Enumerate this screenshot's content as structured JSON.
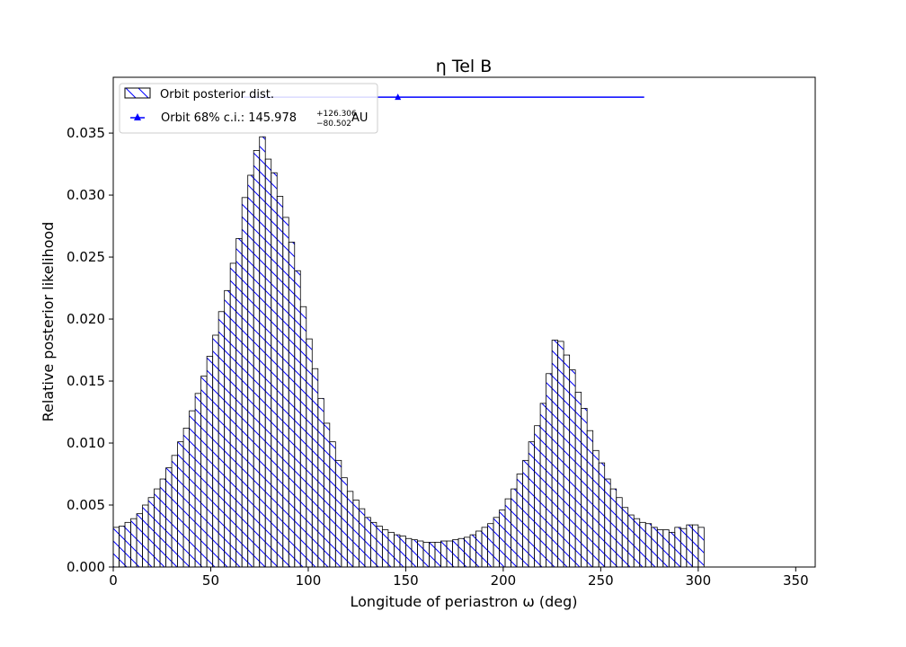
{
  "chart_data": {
    "type": "bar",
    "title": "η Tel B",
    "xlabel": "Longitude of periastron ω (deg)",
    "ylabel": "Relative posterior likelihood",
    "xlim": [
      0,
      360
    ],
    "ylim": [
      0,
      0.0395
    ],
    "xticks": [
      0,
      50,
      100,
      150,
      200,
      250,
      300,
      350
    ],
    "yticks": [
      0.0,
      0.005,
      0.01,
      0.015,
      0.02,
      0.025,
      0.03,
      0.035
    ],
    "ytick_labels": [
      "0.000",
      "0.005",
      "0.010",
      "0.015",
      "0.020",
      "0.025",
      "0.030",
      "0.035"
    ],
    "bin_width": 3,
    "bin_start": 0,
    "values": [
      0.0032,
      0.0033,
      0.0036,
      0.0039,
      0.0043,
      0.005,
      0.0056,
      0.0063,
      0.0071,
      0.008,
      0.009,
      0.0101,
      0.0112,
      0.0126,
      0.014,
      0.0154,
      0.017,
      0.0187,
      0.0206,
      0.0223,
      0.0245,
      0.0265,
      0.0298,
      0.0316,
      0.0336,
      0.0347,
      0.0329,
      0.0318,
      0.0299,
      0.0282,
      0.0262,
      0.0239,
      0.021,
      0.0184,
      0.016,
      0.0136,
      0.0116,
      0.0101,
      0.0086,
      0.0072,
      0.0061,
      0.0054,
      0.0047,
      0.004,
      0.0036,
      0.0033,
      0.003,
      0.0028,
      0.0026,
      0.0025,
      0.0023,
      0.0022,
      0.0021,
      0.002,
      0.002,
      0.002,
      0.0021,
      0.0021,
      0.0022,
      0.0023,
      0.0024,
      0.0026,
      0.0029,
      0.0032,
      0.0035,
      0.004,
      0.0046,
      0.0055,
      0.0063,
      0.0075,
      0.0086,
      0.0101,
      0.0114,
      0.0132,
      0.0156,
      0.0183,
      0.0182,
      0.0171,
      0.0159,
      0.0141,
      0.0128,
      0.011,
      0.0094,
      0.0084,
      0.0071,
      0.0063,
      0.0056,
      0.0048,
      0.0042,
      0.0039,
      0.0036,
      0.0035,
      0.0032,
      0.003,
      0.003,
      0.0028,
      0.0032,
      0.0031,
      0.0034,
      0.0034,
      0.0032
    ],
    "hist_color": "#0000ff",
    "edge_color": "#000000",
    "errorbar": {
      "x": 145.978,
      "xerr_low": 80.502,
      "xerr_high": 126.306,
      "y": 0.0379,
      "color": "#0000ff",
      "marker": "triangle"
    },
    "legend": {
      "placement": "top-left",
      "entries": [
        {
          "label": "Orbit posterior dist.",
          "kind": "hatched-patch"
        },
        {
          "label_prefix": "Orbit 68% c.i.: 145.978",
          "sup": "+126.306",
          "sub": "−80.502",
          "label_suffix": " AU",
          "kind": "triangle-marker"
        }
      ]
    },
    "grid": false
  }
}
